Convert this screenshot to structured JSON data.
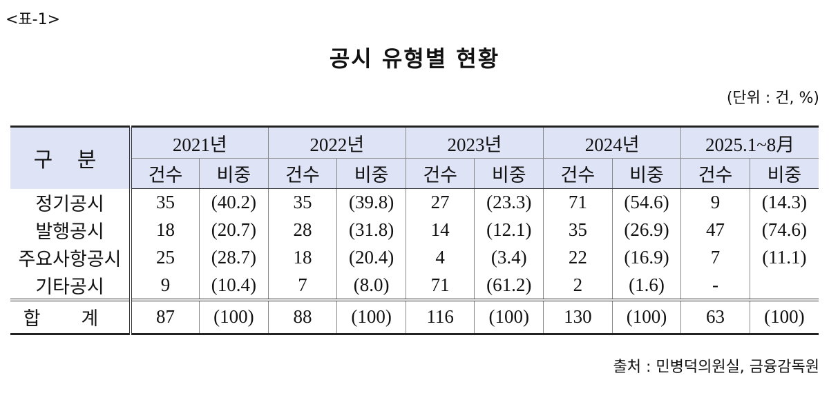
{
  "label": "<표-1>",
  "title": "공시 유형별 현황",
  "unit": "(단위 : 건, %)",
  "table": {
    "header_label": "구 분",
    "years": [
      {
        "year": "2021년",
        "count_label": "건수",
        "share_label": "비중"
      },
      {
        "year": "2022년",
        "count_label": "건수",
        "share_label": "비중"
      },
      {
        "year": "2023년",
        "count_label": "건수",
        "share_label": "비중"
      },
      {
        "year": "2024년",
        "count_label": "건수",
        "share_label": "비중"
      },
      {
        "year": "2025.1~8月",
        "count_label": "건수",
        "share_label": "비중"
      }
    ],
    "rows": [
      {
        "label": "정기공시",
        "cells": [
          "35",
          "(40.2)",
          "35",
          "(39.8)",
          "27",
          "(23.3)",
          "71",
          "(54.6)",
          "9",
          "(14.3)"
        ]
      },
      {
        "label": "발행공시",
        "cells": [
          "18",
          "(20.7)",
          "28",
          "(31.8)",
          "14",
          "(12.1)",
          "35",
          "(26.9)",
          "47",
          "(74.6)"
        ]
      },
      {
        "label": "주요사항공시",
        "cells": [
          "25",
          "(28.7)",
          "18",
          "(20.4)",
          "4",
          "(3.4)",
          "22",
          "(16.9)",
          "7",
          "(11.1)"
        ]
      },
      {
        "label": "기타공시",
        "cells": [
          "9",
          "(10.4)",
          "7",
          "(8.0)",
          "71",
          "(61.2)",
          "2",
          "(1.6)",
          "-",
          null
        ]
      }
    ],
    "total": {
      "label": "합 계",
      "cells": [
        "87",
        "(100)",
        "88",
        "(100)",
        "116",
        "(100)",
        "130",
        "(100)",
        "63",
        "(100)"
      ]
    }
  },
  "source": "출처 : 민병덕의원실, 금융감독원"
}
